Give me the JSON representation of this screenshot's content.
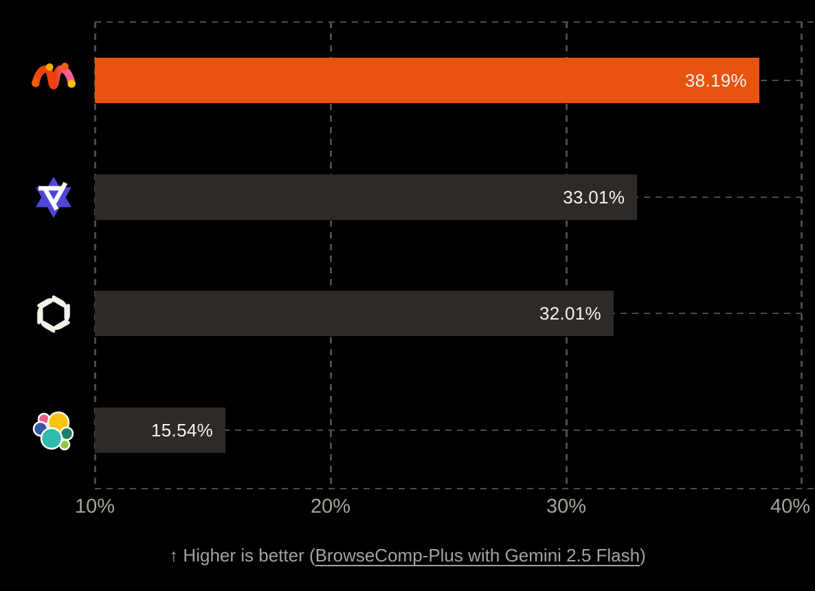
{
  "chart_data": {
    "type": "bar",
    "orientation": "horizontal",
    "title": "",
    "categories": [
      "m-network-logo",
      "indigo-hexagram-logo",
      "openai-logo",
      "elastic-logo"
    ],
    "values": [
      38.19,
      33.01,
      32.01,
      15.54
    ],
    "value_labels": [
      "38.19%",
      "33.01%",
      "32.01%",
      "15.54%"
    ],
    "xlim": [
      10,
      40
    ],
    "x_tick_values": [
      10,
      20,
      30,
      40
    ],
    "x_tick_labels": [
      "10%",
      "20%",
      "30%",
      "40%"
    ],
    "highlight_index": 0,
    "bar_color_highlight": "#E95310",
    "bar_color_default": "#2E2A27",
    "background_color": "#000000",
    "grid": "dashed",
    "legend": "none"
  },
  "icons": [
    {
      "name": "m-network-logo",
      "colors": [
        "#F34E0C",
        "#F2608C",
        "#FFAD00",
        "#FFC00A"
      ]
    },
    {
      "name": "indigo-hexagram-logo",
      "colors": [
        "#4F46D8",
        "#FFFFFF"
      ]
    },
    {
      "name": "openai-logo",
      "colors": [
        "#F5F1EA"
      ]
    },
    {
      "name": "elastic-logo",
      "colors": [
        "#FDC40E",
        "#EF5B84",
        "#3757A6",
        "#30BCAD",
        "#1E7D66",
        "#93C83E"
      ]
    }
  ],
  "footer": {
    "caption_prefix": "↑ Higher is better (",
    "caption_link": "BrowseComp-Plus with Gemini 2.5 Flash",
    "caption_suffix": ")"
  }
}
